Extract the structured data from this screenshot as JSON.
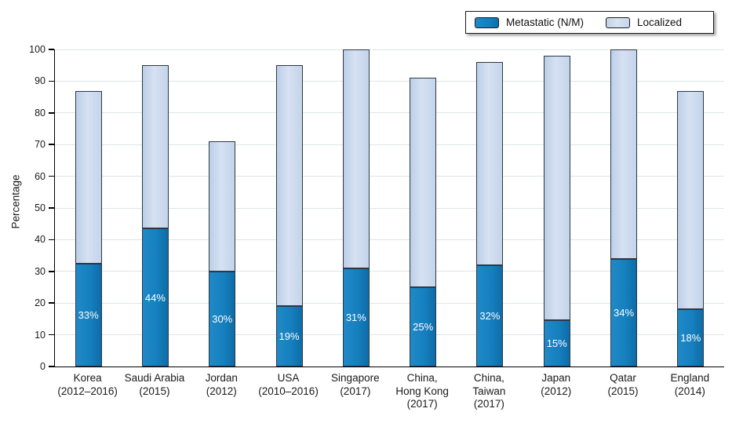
{
  "legend": {
    "items": [
      {
        "name": "metastatic",
        "label": "Metastatic (N/M)",
        "color": "#1680bf"
      },
      {
        "name": "localized",
        "label": "Localized",
        "color": "#ccdaee"
      }
    ]
  },
  "chart_data": {
    "type": "bar",
    "stacked": true,
    "title": "",
    "xlabel": "",
    "ylabel": "Percentage",
    "ylim": [
      0,
      100
    ],
    "yticks": [
      0,
      10,
      20,
      30,
      40,
      50,
      60,
      70,
      80,
      90,
      100
    ],
    "grid": true,
    "legend_position": "top-right",
    "categories": [
      "Korea (2012–2016)",
      "Saudi Arabia (2015)",
      "Jordan (2012)",
      "USA (2010–2016)",
      "Singapore (2017)",
      "China, Hong Kong (2017)",
      "China, Taiwan (2017)",
      "Japan (2012)",
      "Qatar (2015)",
      "England (2014)"
    ],
    "category_lines": [
      [
        "Korea",
        "(2012–2016)"
      ],
      [
        "Saudi Arabia",
        "(2015)"
      ],
      [
        "Jordan",
        "(2012)"
      ],
      [
        "USA",
        "(2010–2016)"
      ],
      [
        "Singapore",
        "(2017)"
      ],
      [
        "China,",
        "Hong Kong",
        "(2017)"
      ],
      [
        "China,",
        "Taiwan",
        "(2017)"
      ],
      [
        "Japan",
        "(2012)"
      ],
      [
        "Qatar",
        "(2015)"
      ],
      [
        "England",
        "(2014)"
      ]
    ],
    "series": [
      {
        "name": "Metastatic (N/M)",
        "color": "#1680bf",
        "values": [
          32.5,
          43.5,
          30,
          19,
          31,
          25,
          32,
          14.5,
          34,
          18
        ],
        "labels": [
          "33%",
          "44%",
          "30%",
          "19%",
          "31%",
          "25%",
          "32%",
          "15%",
          "34%",
          "18%"
        ]
      },
      {
        "name": "Localized",
        "color": "#ccdaee",
        "values": [
          54.5,
          51.5,
          41,
          76,
          69,
          66,
          64,
          83.5,
          66,
          69
        ]
      }
    ],
    "stack_totals": [
      87,
      95,
      71,
      95,
      100,
      91,
      96,
      98,
      100,
      87
    ]
  }
}
